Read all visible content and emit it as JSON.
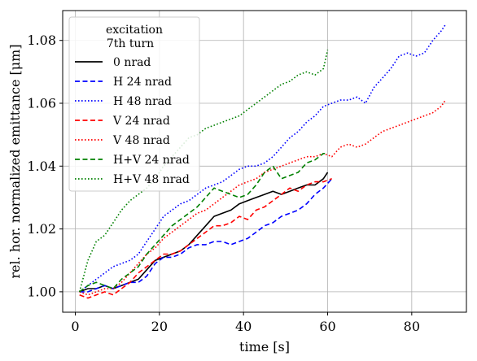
{
  "chart_data": {
    "type": "line",
    "title": "",
    "xlabel": "time [s]",
    "ylabel": "rel. hor. normalized emittance [μm]",
    "xlim": [
      -3,
      93
    ],
    "ylim": [
      0.9935,
      1.0895
    ],
    "x_ticks": [
      0,
      20,
      40,
      60,
      80
    ],
    "y_ticks": [
      1.0,
      1.02,
      1.04,
      1.06,
      1.08
    ],
    "x_tick_labels": [
      "0",
      "20",
      "40",
      "60",
      "80"
    ],
    "y_tick_labels": [
      "1.00",
      "1.02",
      "1.04",
      "1.06",
      "1.08"
    ],
    "grid": true,
    "legend": {
      "placement": "top-left",
      "title_line1": "excitation",
      "title_line2": "7th turn"
    },
    "series": [
      {
        "name": "0 nrad",
        "color": "#000000",
        "dash": "solid",
        "x": [
          1,
          3,
          5,
          7,
          9,
          11,
          13,
          15,
          17,
          19,
          21,
          23,
          25,
          27,
          29,
          31,
          33,
          35,
          37,
          39,
          41,
          43,
          45,
          47,
          49,
          51,
          53,
          55,
          57,
          59,
          60
        ],
        "y": [
          1.0,
          1.001,
          1.001,
          1.002,
          1.001,
          1.002,
          1.003,
          1.004,
          1.007,
          1.01,
          1.011,
          1.012,
          1.013,
          1.015,
          1.018,
          1.021,
          1.024,
          1.025,
          1.026,
          1.028,
          1.029,
          1.03,
          1.031,
          1.032,
          1.031,
          1.032,
          1.033,
          1.034,
          1.034,
          1.036,
          1.038
        ]
      },
      {
        "name": "H 24 nrad",
        "color": "#0000ff",
        "dash": "dashed",
        "x": [
          1,
          3,
          5,
          7,
          9,
          11,
          13,
          15,
          17,
          19,
          21,
          23,
          25,
          27,
          29,
          31,
          33,
          35,
          37,
          39,
          41,
          43,
          45,
          47,
          49,
          51,
          53,
          55,
          57,
          59,
          61
        ],
        "y": [
          1.0,
          1.0,
          1.001,
          1.002,
          1.001,
          1.002,
          1.003,
          1.003,
          1.005,
          1.009,
          1.011,
          1.011,
          1.012,
          1.014,
          1.015,
          1.015,
          1.016,
          1.016,
          1.015,
          1.016,
          1.017,
          1.019,
          1.021,
          1.022,
          1.024,
          1.025,
          1.026,
          1.028,
          1.031,
          1.033,
          1.036
        ]
      },
      {
        "name": "H 48 nrad",
        "color": "#0000ff",
        "dash": "dotted",
        "x": [
          1,
          3,
          5,
          7,
          9,
          11,
          13,
          15,
          17,
          19,
          21,
          23,
          25,
          27,
          29,
          31,
          33,
          35,
          37,
          39,
          41,
          43,
          45,
          47,
          49,
          51,
          53,
          55,
          57,
          59,
          61,
          63,
          65,
          67,
          69,
          71,
          73,
          75,
          77,
          79,
          81,
          83,
          85,
          87,
          88
        ],
        "y": [
          1.0,
          1.002,
          1.004,
          1.006,
          1.008,
          1.009,
          1.01,
          1.012,
          1.016,
          1.02,
          1.024,
          1.026,
          1.028,
          1.029,
          1.031,
          1.033,
          1.034,
          1.035,
          1.037,
          1.039,
          1.04,
          1.04,
          1.041,
          1.043,
          1.046,
          1.049,
          1.051,
          1.054,
          1.056,
          1.059,
          1.06,
          1.061,
          1.061,
          1.062,
          1.06,
          1.065,
          1.068,
          1.071,
          1.075,
          1.076,
          1.075,
          1.076,
          1.08,
          1.083,
          1.085
        ]
      },
      {
        "name": "V 24 nrad",
        "color": "#ff0000",
        "dash": "dashed",
        "x": [
          1,
          3,
          5,
          7,
          9,
          11,
          13,
          15,
          17,
          19,
          21,
          23,
          25,
          27,
          29,
          31,
          33,
          35,
          37,
          39,
          41,
          43,
          45,
          47,
          49,
          51,
          53,
          55,
          57,
          59,
          61
        ],
        "y": [
          0.999,
          0.998,
          0.999,
          1.0,
          0.999,
          1.001,
          1.003,
          1.006,
          1.008,
          1.01,
          1.012,
          1.012,
          1.013,
          1.015,
          1.017,
          1.019,
          1.021,
          1.021,
          1.022,
          1.024,
          1.023,
          1.026,
          1.027,
          1.029,
          1.031,
          1.033,
          1.032,
          1.034,
          1.035,
          1.035,
          1.036
        ]
      },
      {
        "name": "V 48 nrad",
        "color": "#ff0000",
        "dash": "dotted",
        "x": [
          1,
          3,
          5,
          7,
          9,
          11,
          13,
          15,
          17,
          19,
          21,
          23,
          25,
          27,
          29,
          31,
          33,
          35,
          37,
          39,
          41,
          43,
          45,
          47,
          49,
          51,
          53,
          55,
          57,
          59,
          61,
          63,
          65,
          67,
          69,
          71,
          73,
          75,
          77,
          79,
          81,
          83,
          85,
          87,
          88
        ],
        "y": [
          1.0,
          0.999,
          1.0,
          1.001,
          1.001,
          1.003,
          1.006,
          1.009,
          1.012,
          1.014,
          1.017,
          1.019,
          1.021,
          1.023,
          1.025,
          1.026,
          1.028,
          1.03,
          1.032,
          1.034,
          1.035,
          1.036,
          1.038,
          1.039,
          1.04,
          1.041,
          1.042,
          1.043,
          1.043,
          1.044,
          1.043,
          1.046,
          1.047,
          1.046,
          1.047,
          1.049,
          1.051,
          1.052,
          1.053,
          1.054,
          1.055,
          1.056,
          1.057,
          1.059,
          1.061
        ]
      },
      {
        "name": "H+V 24 nrad",
        "color": "#008000",
        "dash": "dashed",
        "x": [
          1,
          3,
          5,
          7,
          9,
          11,
          13,
          15,
          17,
          19,
          21,
          23,
          25,
          27,
          29,
          31,
          33,
          35,
          37,
          39,
          41,
          43,
          45,
          47,
          49,
          51,
          53,
          55,
          57,
          59,
          60
        ],
        "y": [
          1.0,
          1.002,
          1.003,
          1.002,
          1.001,
          1.004,
          1.006,
          1.008,
          1.012,
          1.015,
          1.018,
          1.021,
          1.023,
          1.025,
          1.027,
          1.03,
          1.033,
          1.032,
          1.031,
          1.03,
          1.031,
          1.034,
          1.038,
          1.04,
          1.036,
          1.037,
          1.038,
          1.041,
          1.042,
          1.044,
          1.044
        ]
      },
      {
        "name": "H+V 48 nrad",
        "color": "#008000",
        "dash": "dotted",
        "x": [
          1,
          3,
          5,
          7,
          9,
          11,
          13,
          15,
          17,
          19,
          21,
          23,
          25,
          27,
          29,
          31,
          33,
          35,
          37,
          39,
          41,
          43,
          45,
          47,
          49,
          51,
          53,
          55,
          57,
          59,
          60
        ],
        "y": [
          1.0,
          1.01,
          1.016,
          1.018,
          1.022,
          1.026,
          1.029,
          1.031,
          1.033,
          1.036,
          1.04,
          1.043,
          1.046,
          1.049,
          1.05,
          1.052,
          1.053,
          1.054,
          1.055,
          1.056,
          1.058,
          1.06,
          1.062,
          1.064,
          1.066,
          1.067,
          1.069,
          1.07,
          1.069,
          1.071,
          1.077
        ]
      }
    ]
  }
}
